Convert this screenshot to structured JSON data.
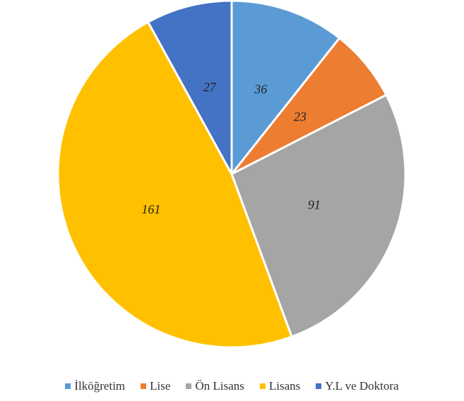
{
  "chart_data": {
    "type": "pie",
    "categories": [
      "İlköğretim",
      "Lise",
      "Ön Lisans",
      "Lisans",
      "Y.L ve Doktora"
    ],
    "values": [
      36,
      23,
      91,
      161,
      27
    ],
    "colors": [
      "#5b9bd5",
      "#ed7d31",
      "#a5a5a5",
      "#ffc000",
      "#4472c4"
    ],
    "legend": "bottom"
  }
}
